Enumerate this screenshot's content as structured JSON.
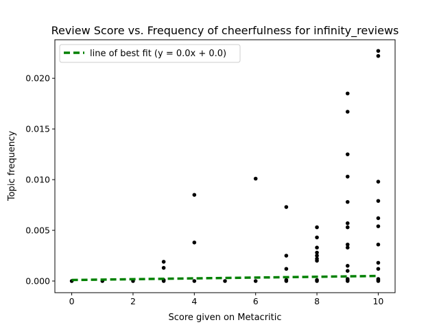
{
  "chart_data": {
    "type": "scatter",
    "title": "Review Score vs. Frequency of cheerfulness for infinity_reviews",
    "xlabel": "Score given on Metacritic",
    "ylabel": "Topic frequency",
    "xlim": [
      -0.55,
      10.55
    ],
    "ylim": [
      -0.00115,
      0.0238
    ],
    "xticks": [
      0,
      2,
      4,
      6,
      8,
      10
    ],
    "xtick_labels": [
      "0",
      "2",
      "4",
      "6",
      "8",
      "10"
    ],
    "yticks": [
      0.0,
      0.005,
      0.01,
      0.015,
      0.02
    ],
    "ytick_labels": [
      "0.000",
      "0.005",
      "0.010",
      "0.015",
      "0.020"
    ],
    "grid": false,
    "legend_position": "top-left",
    "series": [
      {
        "kind": "points",
        "color": "#000000",
        "x": [
          0,
          1,
          2,
          3,
          3,
          3,
          3,
          4,
          4,
          4,
          5,
          6,
          6,
          7,
          7,
          7,
          7,
          7,
          8,
          8,
          8,
          8,
          8,
          8,
          8,
          8,
          8,
          9,
          9,
          9,
          9,
          9,
          9,
          9,
          9,
          9,
          9,
          9,
          9,
          9,
          9,
          10,
          10,
          10,
          10,
          10,
          10,
          10,
          10,
          10,
          10,
          10,
          10
        ],
        "y": [
          0.0,
          0.0,
          0.0,
          0.0,
          0.0019,
          0.0013,
          0.0001,
          0.0085,
          0.0038,
          0.0,
          0.0,
          0.0101,
          0.0,
          0.0073,
          0.0025,
          0.0012,
          0.0001,
          0.0,
          0.0053,
          0.0043,
          0.0033,
          0.0028,
          0.0025,
          0.0022,
          0.002,
          0.0001,
          0.0,
          0.0185,
          0.0167,
          0.0125,
          0.0103,
          0.0078,
          0.0057,
          0.0053,
          0.0036,
          0.0033,
          0.0015,
          0.001,
          0.0002,
          0.0001,
          0.0,
          0.0227,
          0.0222,
          0.0098,
          0.0079,
          0.0062,
          0.0054,
          0.0036,
          0.0018,
          0.0012,
          0.0002,
          0.0001,
          0.0
        ]
      },
      {
        "kind": "line",
        "name": "line of best fit (y = 0.0x + 0.0)",
        "color": "#008000",
        "linestyle": "dashed",
        "x": [
          0,
          10
        ],
        "y": [
          0.0001,
          0.0005
        ]
      }
    ]
  }
}
